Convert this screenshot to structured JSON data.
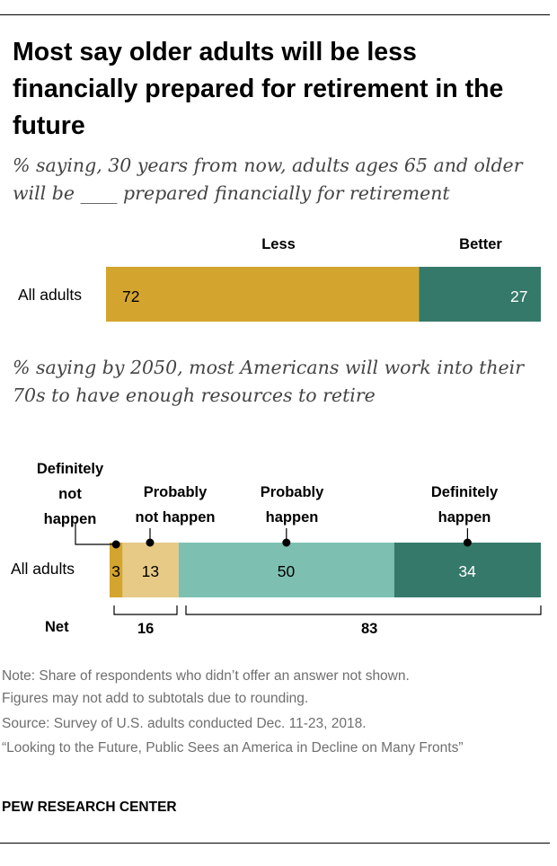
{
  "title": "Most say older adults will be less financially prepared for retirement in the future",
  "chart_data": [
    {
      "type": "bar",
      "orientation": "horizontal-stacked",
      "subtitle": "% saying, 30 years from now, adults ages 65 and older will be ____ prepared financially for retirement",
      "categories": [
        "All adults"
      ],
      "series": [
        {
          "name": "Less",
          "values": [
            72
          ],
          "color": "#d4a52e"
        },
        {
          "name": "Better",
          "values": [
            27
          ],
          "color": "#35796a"
        }
      ]
    },
    {
      "type": "bar",
      "orientation": "horizontal-stacked",
      "subtitle": "% saying by 2050, most Americans will work into their 70s to have enough resources to retire",
      "categories": [
        "All adults"
      ],
      "series": [
        {
          "name": "Definitely not happen",
          "label_lines": [
            "Definitely",
            "not",
            "happen"
          ],
          "values": [
            3
          ],
          "color": "#d4a52e"
        },
        {
          "name": "Probably not happen",
          "label_lines": [
            "Probably",
            "not happen"
          ],
          "values": [
            13
          ],
          "color": "#e7ca86"
        },
        {
          "name": "Probably happen",
          "label_lines": [
            "Probably",
            "happen"
          ],
          "values": [
            50
          ],
          "color": "#7dc0b2"
        },
        {
          "name": "Definitely happen",
          "label_lines": [
            "Definitely",
            "happen"
          ],
          "values": [
            34
          ],
          "color": "#35796a"
        }
      ],
      "net": {
        "label": "Net",
        "values": [
          16,
          83
        ]
      }
    }
  ],
  "notes": [
    "Note: Share of respondents who didn’t offer an answer not shown.",
    "Figures may not add to subtotals due to rounding.",
    "Source: Survey of U.S. adults conducted Dec. 11-23, 2018.",
    "“Looking to the Future, Public Sees an America in Decline on Many Fronts”"
  ],
  "footer": "PEW RESEARCH CENTER"
}
